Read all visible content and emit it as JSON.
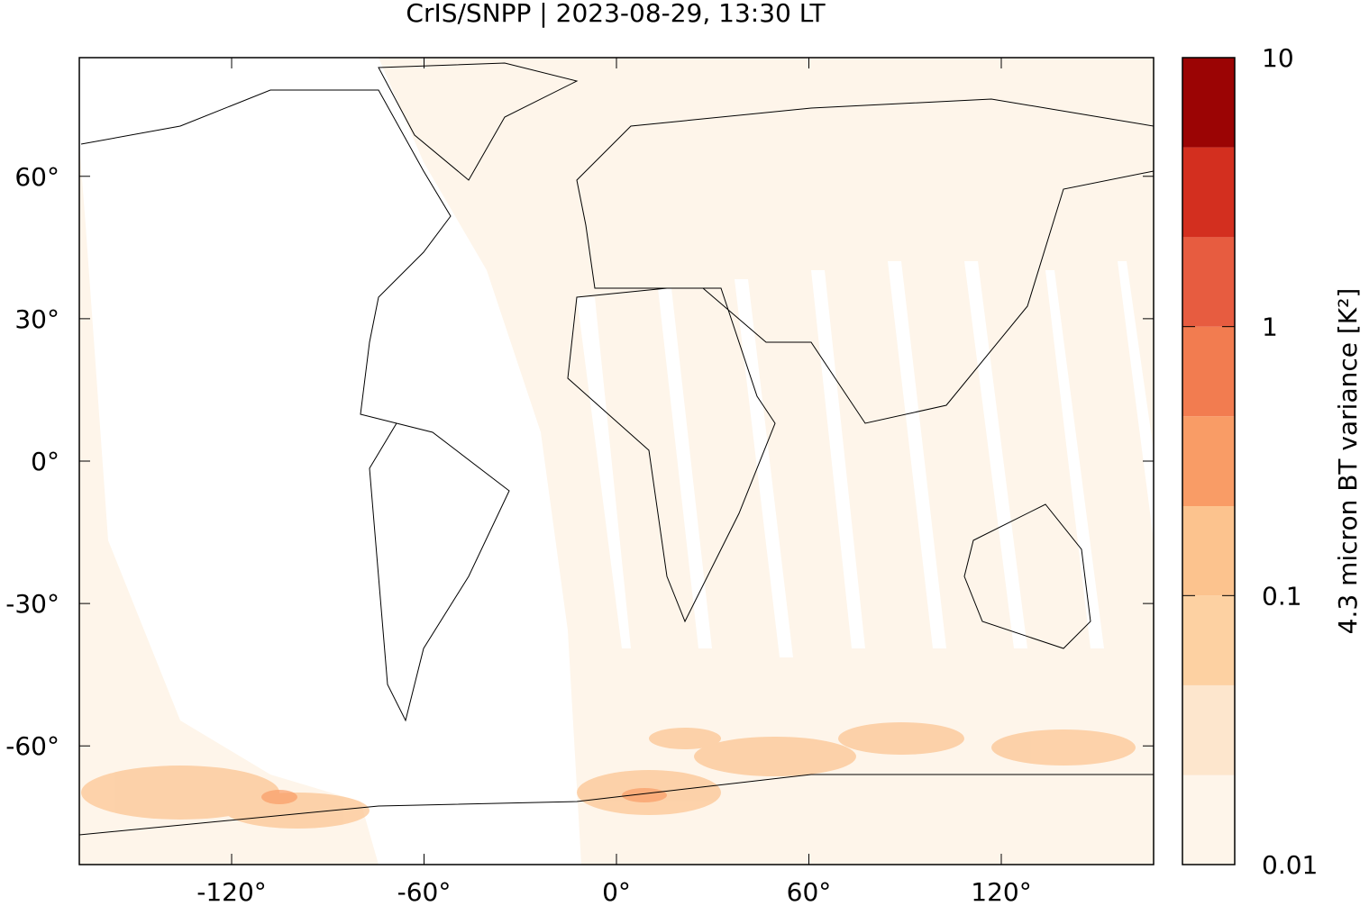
{
  "chart_data": {
    "type": "map",
    "title": "CrIS/SNPP | 2023-08-29, 13:30 LT",
    "xlim": [
      -167.5,
      167.5
    ],
    "ylim": [
      -85,
      85
    ],
    "xticks": [
      {
        "value": -120,
        "label": "-120°"
      },
      {
        "value": -60,
        "label": "-60°"
      },
      {
        "value": 0,
        "label": "0°"
      },
      {
        "value": 60,
        "label": "60°"
      },
      {
        "value": 120,
        "label": "120°"
      }
    ],
    "yticks": [
      {
        "value": 60,
        "label": "60°"
      },
      {
        "value": 30,
        "label": "30°"
      },
      {
        "value": 0,
        "label": "0°"
      },
      {
        "value": -30,
        "label": "-30°"
      },
      {
        "value": -60,
        "label": "-60°"
      }
    ],
    "colorbar": {
      "label": "4.3 micron BT variance [K²]",
      "log": true,
      "clim": [
        0.01,
        10
      ],
      "ticks": [
        0.01,
        0.1,
        1,
        10
      ],
      "levels": [
        0.01,
        0.0215,
        0.0464,
        0.1,
        0.215,
        0.464,
        1,
        2.15,
        4.64,
        10
      ],
      "colors": [
        "#fef5ea",
        "#fde6cd",
        "#fdd1a2",
        "#fcc38e",
        "#f99c66",
        "#f27c50",
        "#e75c40",
        "#d32f1f",
        "#9b0404"
      ]
    }
  }
}
